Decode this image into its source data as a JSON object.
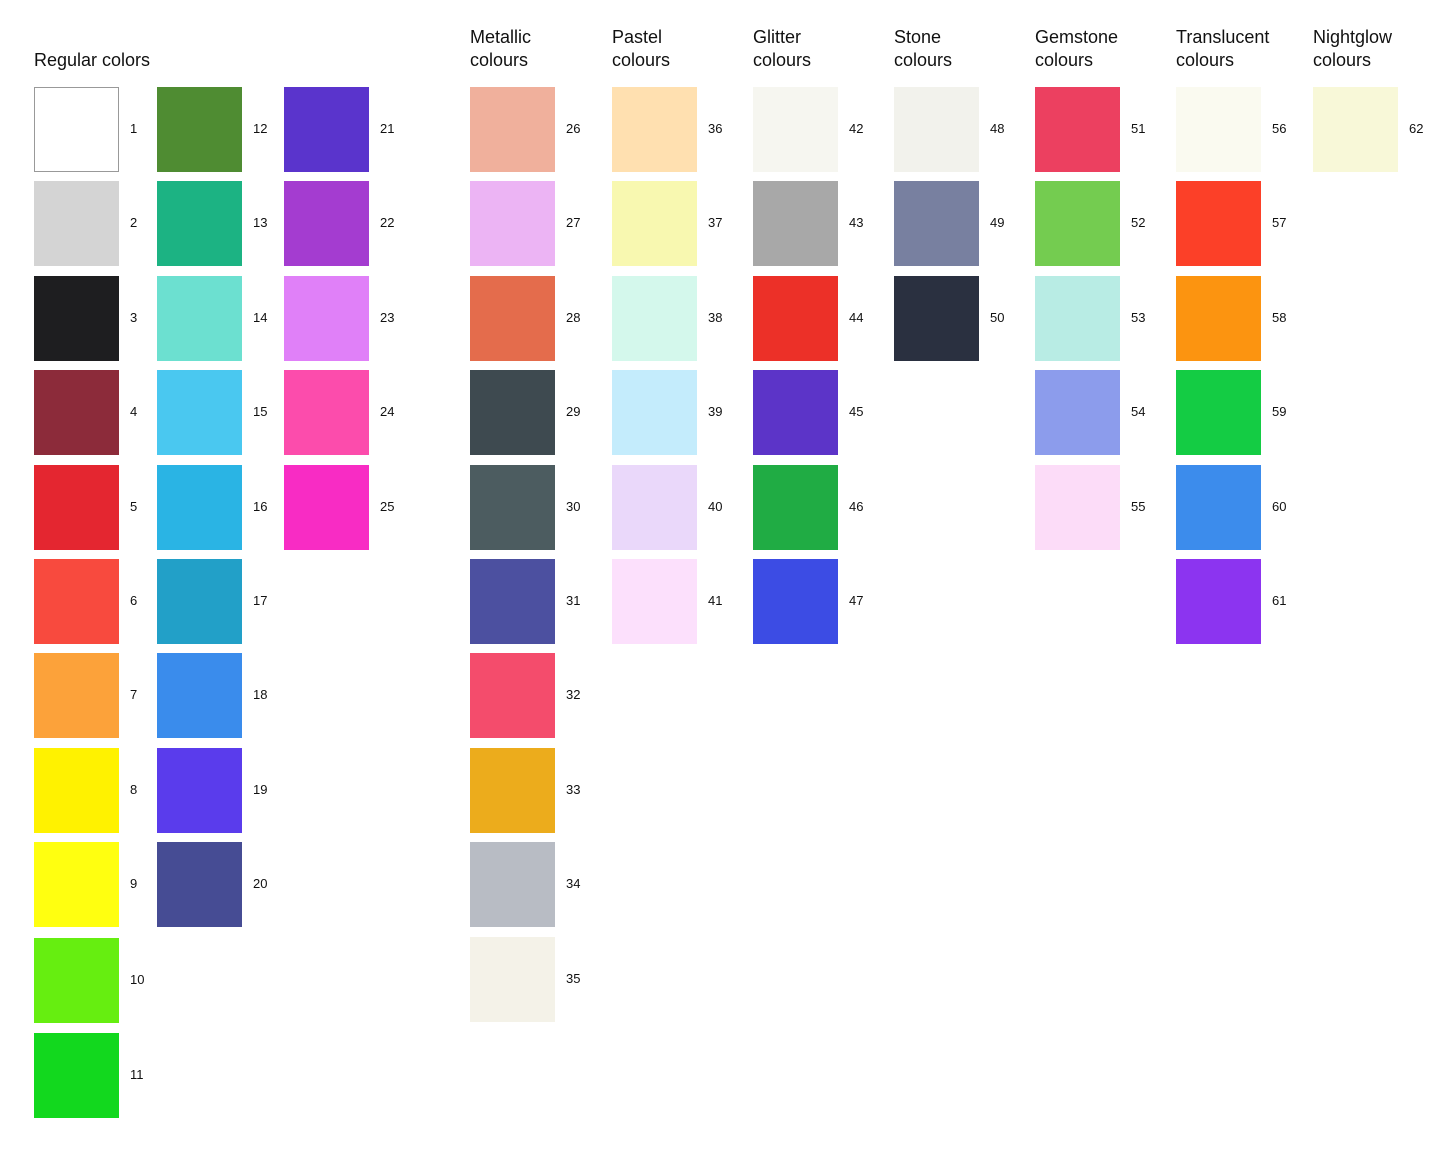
{
  "groups": [
    {
      "title": [
        "Regular colors"
      ],
      "columns": [
        [
          {
            "n": "1",
            "c": "#ffffff"
          },
          {
            "n": "2",
            "c": "#d4d4d4"
          },
          {
            "n": "3",
            "c": "#1e1e20"
          },
          {
            "n": "4",
            "c": "#8c2b3a"
          },
          {
            "n": "5",
            "c": "#e42630"
          },
          {
            "n": "6",
            "c": "#f84a3e"
          },
          {
            "n": "7",
            "c": "#fca23a"
          },
          {
            "n": "8",
            "c": "#fff200"
          },
          {
            "n": "9",
            "c": "#ffff10"
          },
          {
            "n": "10",
            "c": "#66ee10"
          },
          {
            "n": "11",
            "c": "#12d81e"
          }
        ],
        [
          {
            "n": "12",
            "c": "#4f8c32"
          },
          {
            "n": "13",
            "c": "#1cb383"
          },
          {
            "n": "14",
            "c": "#6ce0d0"
          },
          {
            "n": "15",
            "c": "#4ac8f0"
          },
          {
            "n": "16",
            "c": "#2ab4e4"
          },
          {
            "n": "17",
            "c": "#22a0c8"
          },
          {
            "n": "18",
            "c": "#3a8cec"
          },
          {
            "n": "19",
            "c": "#5a3cec"
          },
          {
            "n": "20",
            "c": "#464c94"
          }
        ],
        [
          {
            "n": "21",
            "c": "#5a34cc"
          },
          {
            "n": "22",
            "c": "#a43cd0"
          },
          {
            "n": "23",
            "c": "#e080f8"
          },
          {
            "n": "24",
            "c": "#fc4cac"
          },
          {
            "n": "25",
            "c": "#f82cc4"
          }
        ]
      ]
    },
    {
      "title": [
        "Metallic",
        "colours"
      ],
      "columns": [
        [
          {
            "n": "26",
            "c": "#f0b09c"
          },
          {
            "n": "27",
            "c": "#ecb4f4"
          },
          {
            "n": "28",
            "c": "#e46c4c"
          },
          {
            "n": "29",
            "c": "#3e4a50"
          },
          {
            "n": "30",
            "c": "#4c5c60"
          },
          {
            "n": "31",
            "c": "#4c50a0"
          },
          {
            "n": "32",
            "c": "#f44c6c"
          },
          {
            "n": "33",
            "c": "#ecac1c"
          },
          {
            "n": "34",
            "c": "#b8bcc4"
          },
          {
            "n": "35",
            "c": "#f4f2e8"
          }
        ]
      ]
    },
    {
      "title": [
        "Pastel",
        "colours"
      ],
      "columns": [
        [
          {
            "n": "36",
            "c": "#ffe0b0"
          },
          {
            "n": "37",
            "c": "#f8f8b0"
          },
          {
            "n": "38",
            "c": "#d4f8ec"
          },
          {
            "n": "39",
            "c": "#c4ecfc"
          },
          {
            "n": "40",
            "c": "#ead8fa"
          },
          {
            "n": "41",
            "c": "#fce0fc"
          }
        ]
      ]
    },
    {
      "title": [
        "Glitter",
        "colours"
      ],
      "columns": [
        [
          {
            "n": "42",
            "c": "#f6f6f0"
          },
          {
            "n": "43",
            "c": "#a8a8a8"
          },
          {
            "n": "44",
            "c": "#ec3028"
          },
          {
            "n": "45",
            "c": "#5c34c8"
          },
          {
            "n": "46",
            "c": "#20ac44"
          },
          {
            "n": "47",
            "c": "#3c4ce4"
          }
        ]
      ]
    },
    {
      "title": [
        "Stone",
        "colours"
      ],
      "columns": [
        [
          {
            "n": "48",
            "c": "#f2f2ec"
          },
          {
            "n": "49",
            "c": "#7880a0"
          },
          {
            "n": "50",
            "c": "#2a3040"
          }
        ]
      ]
    },
    {
      "title": [
        "Gemstone",
        "colours"
      ],
      "columns": [
        [
          {
            "n": "51",
            "c": "#ec4060"
          },
          {
            "n": "52",
            "c": "#74cc50"
          },
          {
            "n": "53",
            "c": "#b8ece4"
          },
          {
            "n": "54",
            "c": "#8c9cec"
          },
          {
            "n": "55",
            "c": "#fcdcf8"
          }
        ]
      ]
    },
    {
      "title": [
        "Translucent",
        "colours"
      ],
      "columns": [
        [
          {
            "n": "56",
            "c": "#fafaf0"
          },
          {
            "n": "57",
            "c": "#fc4028"
          },
          {
            "n": "58",
            "c": "#fc9410"
          },
          {
            "n": "59",
            "c": "#14cc44"
          },
          {
            "n": "60",
            "c": "#3c8cec"
          },
          {
            "n": "61",
            "c": "#8c34f0"
          }
        ]
      ]
    },
    {
      "title": [
        "Nightglow",
        "colours"
      ],
      "columns": [
        [
          {
            "n": "62",
            "c": "#f8f8d8"
          }
        ]
      ]
    }
  ]
}
